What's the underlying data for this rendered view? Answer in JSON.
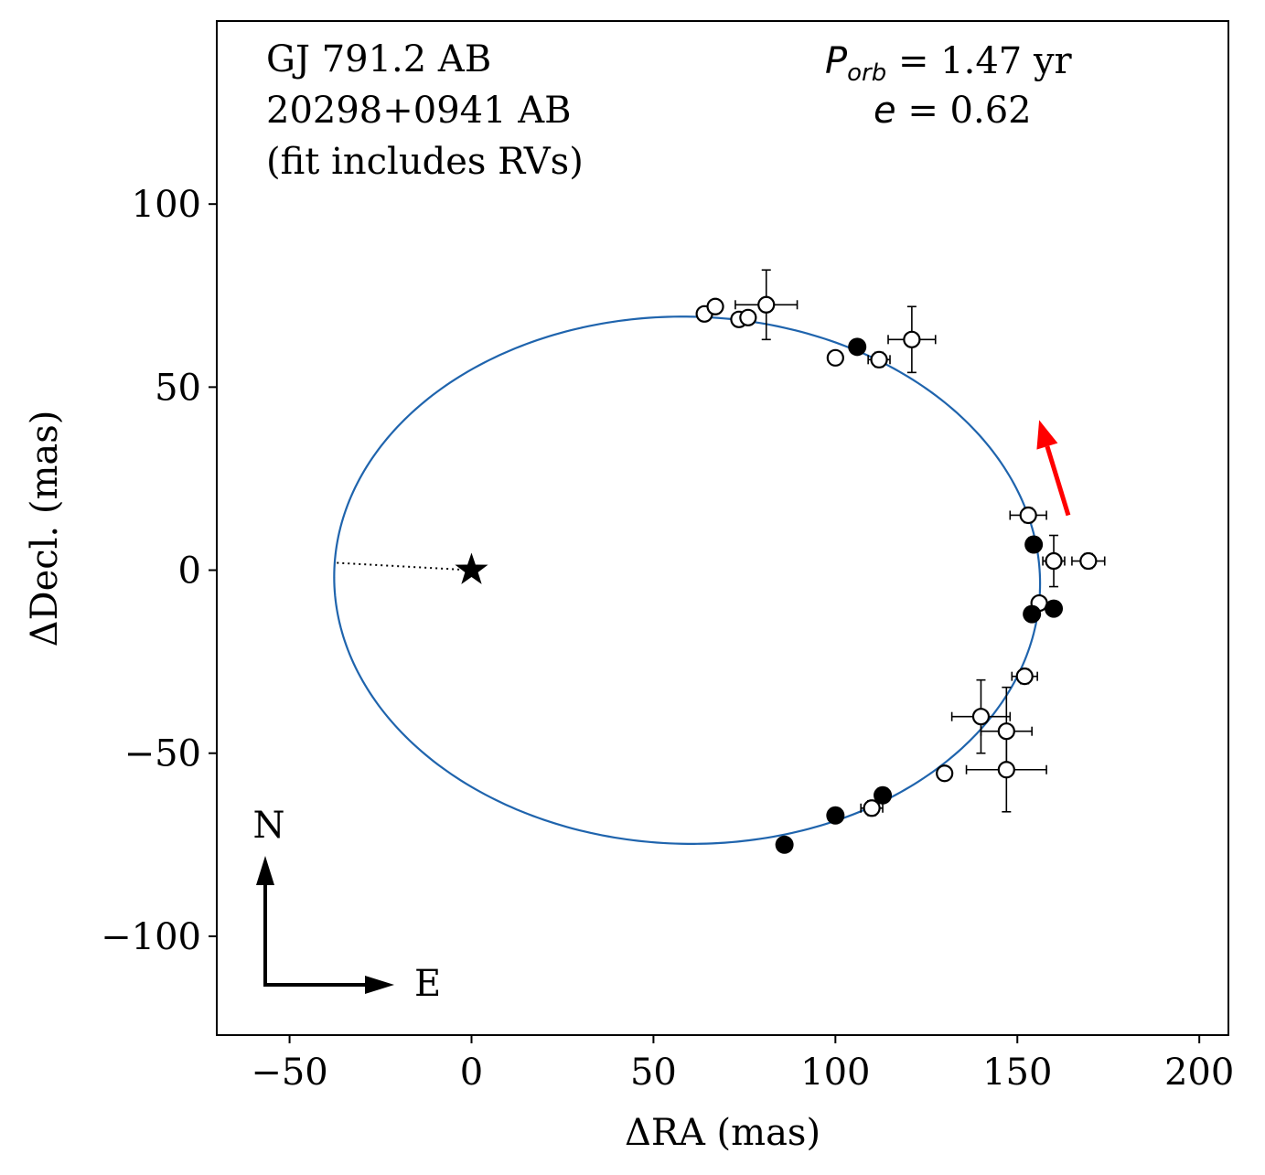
{
  "chart_data": {
    "type": "scatter",
    "title_lines": [
      "GJ 791.2 AB",
      "20298+0941 AB",
      "(fit includes RVs)"
    ],
    "params": {
      "period_label": "P",
      "period_sub": "orb",
      "period_text": " =  1.47 yr",
      "ecc_label": "e",
      "ecc_text": " = 0.62"
    },
    "xlabel": "ΔRA  (mas)",
    "ylabel": "ΔDecl.  (mas)",
    "xlim": [
      -70,
      208
    ],
    "ylim": [
      -127,
      150
    ],
    "xticks": [
      -50,
      0,
      50,
      100,
      150,
      200
    ],
    "yticks": [
      -100,
      -50,
      0,
      50,
      100
    ],
    "tick_labels_x": [
      "−50",
      "0",
      "50",
      "100",
      "150",
      "200"
    ],
    "tick_labels_y": [
      "−100",
      "−50",
      "0",
      "50",
      "100"
    ],
    "orbit": {
      "center": [
        59.25,
        -2.75
      ],
      "semi_major": 97.0,
      "semi_minor": 72.0,
      "rotation_deg": -1.2,
      "color": "#1f64ad"
    },
    "primary_star": {
      "x": 0,
      "y": 0,
      "symbol": "star"
    },
    "periastron_line": {
      "from": [
        -37,
        2
      ],
      "to": [
        0,
        0
      ],
      "style": "dotted"
    },
    "motion_arrow": {
      "from": [
        164,
        15
      ],
      "to": [
        156,
        41
      ],
      "color": "#ff0000"
    },
    "compass": {
      "north": "N",
      "east": "E"
    },
    "open_points": [
      {
        "x": 64,
        "y": 70,
        "xerr": 0,
        "yerr": 0
      },
      {
        "x": 67,
        "y": 72,
        "xerr": 0,
        "yerr": 0
      },
      {
        "x": 73.5,
        "y": 68.5,
        "xerr": 0,
        "yerr": 0
      },
      {
        "x": 76,
        "y": 69,
        "xerr": 0,
        "yerr": 0
      },
      {
        "x": 81,
        "y": 72.5,
        "xerr": 8.5,
        "yerr": 9.5
      },
      {
        "x": 100,
        "y": 58,
        "xerr": 0,
        "yerr": 0
      },
      {
        "x": 112,
        "y": 57.5,
        "xerr": 3,
        "yerr": 2
      },
      {
        "x": 121,
        "y": 63,
        "xerr": 6.5,
        "yerr": 9
      },
      {
        "x": 153,
        "y": 15,
        "xerr": 5,
        "yerr": 2
      },
      {
        "x": 160,
        "y": 2.5,
        "xerr": 3,
        "yerr": 7
      },
      {
        "x": 169.5,
        "y": 2.5,
        "xerr": 4.5,
        "yerr": 2
      },
      {
        "x": 156,
        "y": -9,
        "xerr": 0,
        "yerr": 0
      },
      {
        "x": 152,
        "y": -29,
        "xerr": 3.5,
        "yerr": 2
      },
      {
        "x": 140,
        "y": -40,
        "xerr": 8,
        "yerr": 10
      },
      {
        "x": 147,
        "y": -44,
        "xerr": 7,
        "yerr": 12
      },
      {
        "x": 147,
        "y": -54.5,
        "xerr": 11,
        "yerr": 11.5
      },
      {
        "x": 130,
        "y": -55.5,
        "xerr": 0,
        "yerr": 0
      },
      {
        "x": 110,
        "y": -65,
        "xerr": 3,
        "yerr": 2
      }
    ],
    "filled_points": [
      {
        "x": 106,
        "y": 61
      },
      {
        "x": 154.5,
        "y": 7
      },
      {
        "x": 154,
        "y": -12
      },
      {
        "x": 160,
        "y": -10.5
      },
      {
        "x": 113,
        "y": -61.5
      },
      {
        "x": 100,
        "y": -67
      },
      {
        "x": 86,
        "y": -75
      }
    ]
  }
}
